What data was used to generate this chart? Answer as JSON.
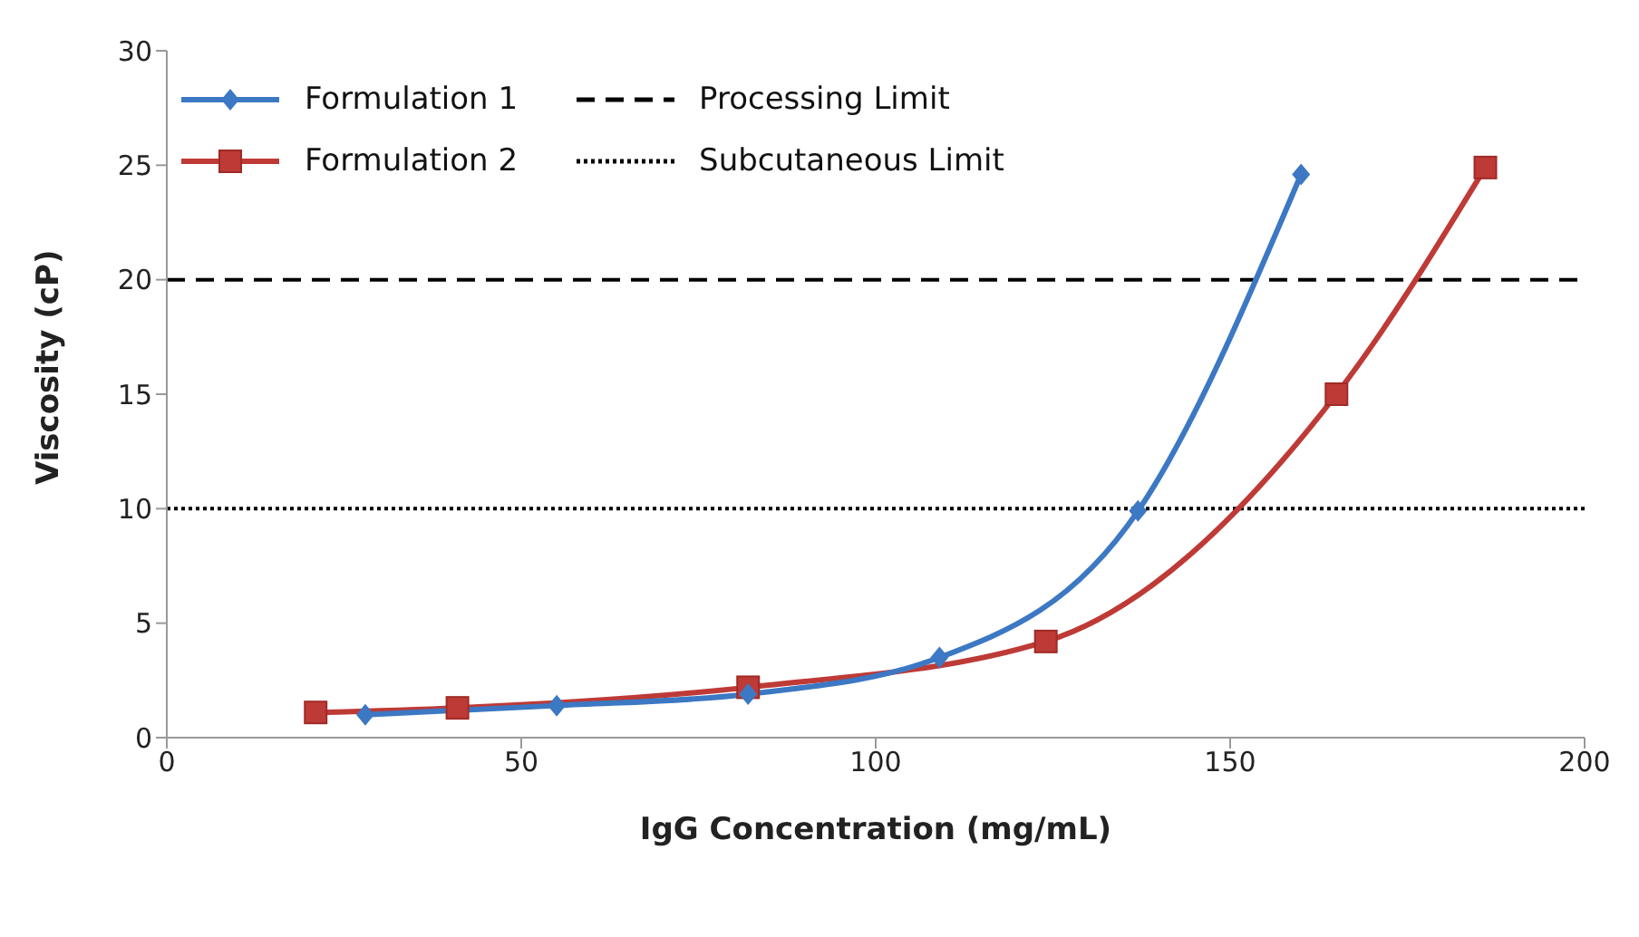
{
  "chart_data": {
    "type": "line",
    "xlabel": "IgG Concentration (mg/mL)",
    "ylabel": "Viscosity (cP)",
    "xlim": [
      0,
      200
    ],
    "xticks": [
      0,
      50,
      100,
      150,
      200
    ],
    "ylim": [
      0,
      30
    ],
    "yticks": [
      0,
      5,
      10,
      15,
      20,
      25,
      30
    ],
    "grid": false,
    "legend": "top left",
    "line_style": "solid",
    "series": [
      {
        "name": "Formulation 1",
        "color": "#3c78c3",
        "marker": "diamond",
        "x": [
          28,
          55,
          82,
          109,
          137,
          160
        ],
        "values": [
          1.0,
          1.4,
          1.9,
          3.5,
          9.9,
          24.6
        ]
      },
      {
        "name": "Formulation 2",
        "color": "#be3a36",
        "marker": "square",
        "x": [
          21,
          41,
          82,
          124,
          165,
          186
        ],
        "values": [
          1.1,
          1.3,
          2.2,
          4.2,
          15.0,
          24.9
        ]
      }
    ],
    "ref_lines": [
      {
        "axis": "y",
        "value": 20,
        "label": "Processing Limit",
        "color": "#000000",
        "line_style": "dashed"
      },
      {
        "axis": "y",
        "value": 10,
        "label": "Subcutaneous Limit",
        "color": "#000000",
        "line_style": "dotted"
      }
    ]
  }
}
